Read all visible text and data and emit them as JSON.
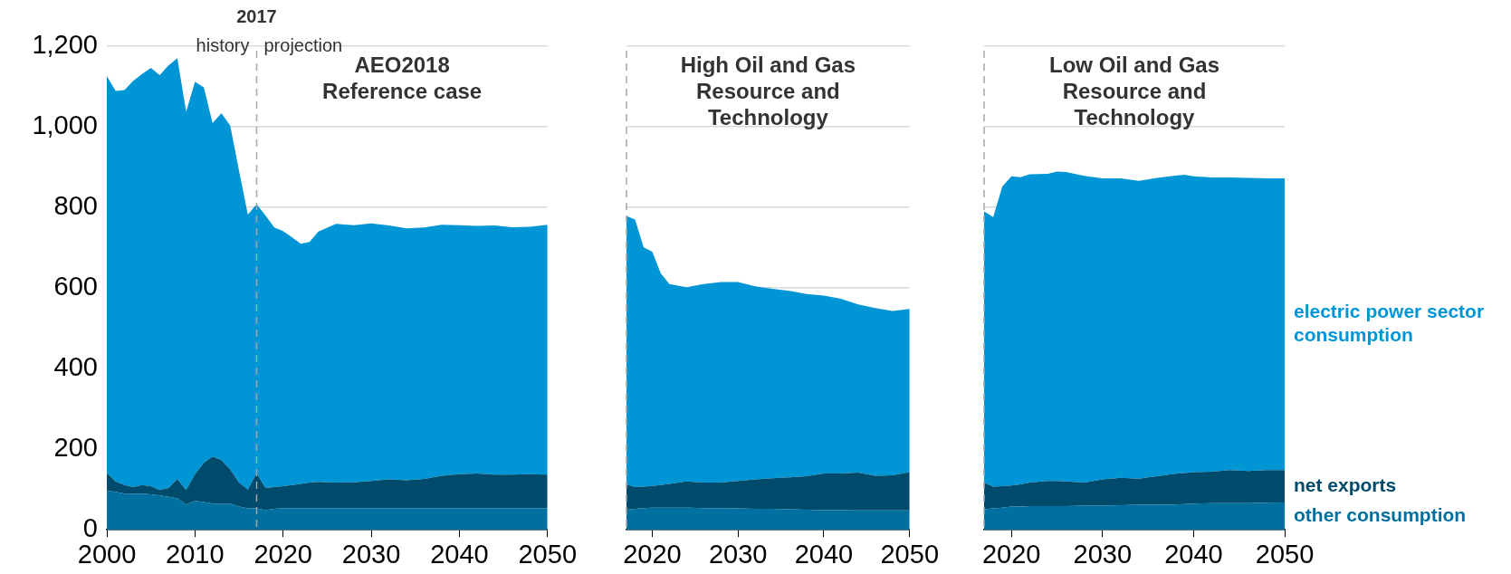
{
  "chart_data": [
    {
      "type": "area",
      "title": "AEO2018 Reference case",
      "stacked": true,
      "grid": "y",
      "legend": false,
      "x": [
        2000,
        2001,
        2002,
        2003,
        2004,
        2005,
        2006,
        2007,
        2008,
        2009,
        2010,
        2011,
        2012,
        2013,
        2014,
        2015,
        2016,
        2017,
        2018,
        2019,
        2020,
        2021,
        2022,
        2023,
        2024,
        2026,
        2028,
        2030,
        2032,
        2034,
        2036,
        2038,
        2040,
        2042,
        2044,
        2046,
        2048,
        2050
      ],
      "xlim": [
        2000,
        2050
      ],
      "xticks": [
        2000,
        2010,
        2020,
        2030,
        2040,
        2050
      ],
      "ylim": [
        0,
        1200
      ],
      "yticks": [
        0,
        200,
        400,
        600,
        800,
        {
          "value": 1000,
          "label": "1,000"
        },
        {
          "value": 1200,
          "label": "1,200"
        }
      ],
      "series": [
        {
          "color": "#0070a0",
          "values": [
            97,
            94,
            90,
            90,
            90,
            88,
            85,
            82,
            78,
            63,
            72,
            69,
            65,
            65,
            65,
            58,
            53,
            53,
            49,
            52,
            54,
            54,
            54,
            54,
            54,
            54,
            54,
            54,
            54,
            54,
            54,
            54,
            54,
            54,
            54,
            54,
            54,
            54
          ]
        },
        {
          "color": "#004a6b",
          "values": [
            44,
            26,
            21,
            16,
            21,
            20,
            14,
            22,
            48,
            36,
            66,
            97,
            117,
            108,
            85,
            59,
            47,
            88,
            55,
            54,
            54,
            57,
            60,
            63,
            65,
            63,
            64,
            67,
            71,
            69,
            72,
            80,
            84,
            86,
            83,
            83,
            84,
            83
          ]
        },
        {
          "color": "#0096d6",
          "values": [
            985,
            969,
            980,
            1008,
            1020,
            1038,
            1029,
            1048,
            1044,
            938,
            974,
            932,
            827,
            861,
            853,
            774,
            682,
            667,
            676,
            644,
            633,
            615,
            596,
            597,
            621,
            642,
            638,
            639,
            630,
            625,
            624,
            623,
            618,
            614,
            618,
            614,
            614,
            620
          ]
        }
      ],
      "ref_lines": [
        {
          "axis": "x",
          "value": 2017,
          "label": "2017",
          "color": "#a6a6a6",
          "line_style": "dashed"
        }
      ],
      "annotations": [
        "history",
        "projection"
      ]
    },
    {
      "type": "area",
      "title": "High Oil and Gas Resource and Technology",
      "stacked": true,
      "grid": "y",
      "legend": false,
      "tick_labels": "x",
      "x": [
        2017,
        2018,
        2019,
        2020,
        2021,
        2022,
        2024,
        2026,
        2028,
        2030,
        2032,
        2034,
        2036,
        2038,
        2040,
        2042,
        2044,
        2046,
        2048,
        2050
      ],
      "xlim": [
        2017,
        2050
      ],
      "xticks": [
        2020,
        2030,
        2040,
        2050
      ],
      "ylim": [
        0,
        1200
      ],
      "yticks": [
        0,
        200,
        400,
        600,
        800,
        1000,
        1200
      ],
      "series": [
        {
          "color": "#0070a0",
          "values": [
            50,
            52,
            54,
            55,
            55,
            55,
            55,
            54,
            54,
            53,
            52,
            52,
            51,
            50,
            49,
            49,
            48,
            48,
            48,
            48
          ]
        },
        {
          "color": "#004a6b",
          "values": [
            62,
            54,
            53,
            54,
            56,
            59,
            65,
            63,
            63,
            68,
            73,
            76,
            79,
            83,
            91,
            91,
            94,
            86,
            87,
            95
          ]
        },
        {
          "color": "#0096d6",
          "values": [
            667,
            664,
            594,
            581,
            525,
            496,
            482,
            493,
            498,
            494,
            479,
            470,
            463,
            452,
            441,
            433,
            417,
            416,
            408,
            405
          ]
        }
      ],
      "ref_lines": [
        {
          "axis": "x",
          "value": 2017,
          "color": "#a6a6a6",
          "line_style": "dashed"
        }
      ]
    },
    {
      "type": "area",
      "title": "Low Oil and Gas Resource and Technology",
      "stacked": true,
      "grid": "y",
      "legend": false,
      "tick_labels": "x",
      "x": [
        2017,
        2018,
        2019,
        2020,
        2021,
        2022,
        2024,
        2025,
        2026,
        2028,
        2030,
        2032,
        2034,
        2036,
        2038,
        2039,
        2040,
        2042,
        2044,
        2046,
        2048,
        2050
      ],
      "xlim": [
        2017,
        2050
      ],
      "xticks": [
        2020,
        2030,
        2040,
        2050
      ],
      "ylim": [
        0,
        1200
      ],
      "yticks": [
        0,
        200,
        400,
        600,
        800,
        1000,
        1200
      ],
      "series": [
        {
          "name": "other consumption",
          "color": "#0070a0",
          "values": [
            51,
            53,
            55,
            58,
            58,
            59,
            59,
            59,
            59,
            60,
            60,
            61,
            62,
            62,
            63,
            64,
            65,
            66,
            66,
            66,
            67,
            68
          ]
        },
        {
          "name": "net exports",
          "color": "#004a6b",
          "values": [
            66,
            54,
            53,
            52,
            55,
            58,
            62,
            62,
            61,
            57,
            65,
            68,
            65,
            71,
            76,
            77,
            78,
            78,
            82,
            80,
            81,
            80
          ]
        },
        {
          "name": "electric power sector consumption",
          "color": "#0096d6",
          "values": [
            673,
            669,
            744,
            767,
            762,
            765,
            762,
            768,
            768,
            761,
            747,
            743,
            739,
            740,
            740,
            740,
            734,
            730,
            726,
            727,
            724,
            724
          ]
        }
      ],
      "ref_lines": [
        {
          "axis": "x",
          "value": 2017,
          "color": "#a6a6a6",
          "line_style": "dashed"
        }
      ]
    }
  ]
}
